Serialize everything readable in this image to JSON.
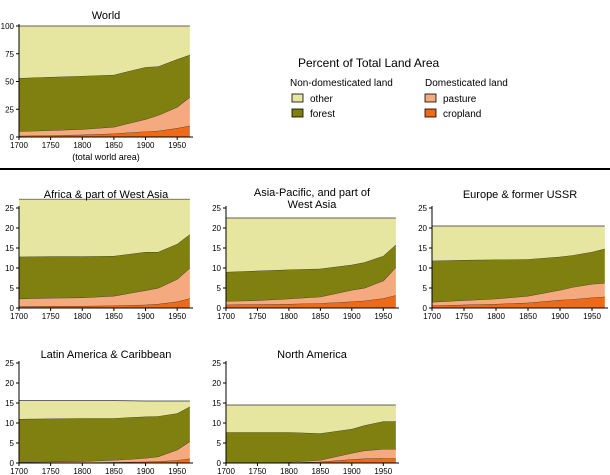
{
  "legend": {
    "title": "Percent of Total Land Area",
    "group_left": "Non-domesticated land",
    "group_right": "Domesticated land",
    "items": [
      {
        "key": "other",
        "label": "other",
        "color": "#e6e6a0"
      },
      {
        "key": "forest",
        "label": "forest",
        "color": "#808010"
      },
      {
        "key": "pasture",
        "label": "pasture",
        "color": "#f5a97f"
      },
      {
        "key": "cropland",
        "label": "cropland",
        "color": "#ee6a16"
      }
    ]
  },
  "chart_data": [
    {
      "type": "area",
      "title": "World",
      "x_note": "(total world area)",
      "x": [
        1700,
        1750,
        1800,
        1850,
        1900,
        1920,
        1950,
        1970
      ],
      "xlim": [
        1700,
        1975
      ],
      "xticks": [
        1700,
        1750,
        1800,
        1850,
        1900,
        1950
      ],
      "ylim": [
        0,
        100
      ],
      "yticks": [
        0,
        25,
        50,
        75,
        100
      ],
      "stacked": true,
      "series": [
        {
          "name": "cropland",
          "values": [
            1,
            1.5,
            2,
            3,
            5,
            5.5,
            8,
            10
          ]
        },
        {
          "name": "pasture",
          "values": [
            4,
            4.5,
            5,
            6,
            11,
            14,
            19,
            26
          ]
        },
        {
          "name": "forest",
          "values": [
            48,
            48,
            48,
            47,
            47,
            44,
            43,
            38
          ]
        },
        {
          "name": "other",
          "values": [
            47,
            46,
            45,
            44,
            37,
            36.5,
            30,
            26
          ]
        }
      ]
    },
    {
      "type": "area",
      "title": "Africa & part of West Asia",
      "x": [
        1700,
        1750,
        1800,
        1850,
        1900,
        1920,
        1950,
        1970
      ],
      "xlim": [
        1700,
        1975
      ],
      "xticks": [
        1700,
        1750,
        1800,
        1850,
        1900,
        1950
      ],
      "ylim": [
        0,
        25
      ],
      "yticks": [
        0,
        5,
        10,
        15,
        20,
        25
      ],
      "stacked": true,
      "series": [
        {
          "name": "cropland",
          "values": [
            0.4,
            0.5,
            0.5,
            0.6,
            0.8,
            1.0,
            1.6,
            2.4
          ]
        },
        {
          "name": "pasture",
          "values": [
            1.9,
            2.0,
            2.1,
            2.4,
            3.6,
            4.0,
            5.6,
            7.6
          ]
        },
        {
          "name": "forest",
          "values": [
            10.5,
            10.4,
            10.3,
            10.0,
            9.6,
            9.0,
            8.8,
            8.4
          ]
        },
        {
          "name": "other",
          "values": [
            14.4,
            14.3,
            14.3,
            14.2,
            13.2,
            13.2,
            11.2,
            8.8
          ]
        }
      ]
    },
    {
      "type": "area",
      "title": "Asia-Pacific, and part of West Asia",
      "x": [
        1700,
        1750,
        1800,
        1850,
        1900,
        1920,
        1950,
        1970
      ],
      "xlim": [
        1700,
        1975
      ],
      "xticks": [
        1700,
        1750,
        1800,
        1850,
        1900,
        1950
      ],
      "ylim": [
        0,
        25
      ],
      "yticks": [
        0,
        5,
        10,
        15,
        20,
        25
      ],
      "stacked": true,
      "series": [
        {
          "name": "cropland",
          "values": [
            0.8,
            0.9,
            1.0,
            1.2,
            1.6,
            1.8,
            2.4,
            3.2
          ]
        },
        {
          "name": "pasture",
          "values": [
            0.9,
            1.0,
            1.3,
            1.6,
            2.9,
            3.2,
            4.4,
            7.0
          ]
        },
        {
          "name": "forest",
          "values": [
            7.3,
            7.4,
            7.3,
            7.0,
            6.3,
            6.4,
            6.2,
            5.6
          ]
        },
        {
          "name": "other",
          "values": [
            13.5,
            13.2,
            12.9,
            12.7,
            11.7,
            11.1,
            9.5,
            6.7
          ]
        }
      ]
    },
    {
      "type": "area",
      "title": "Europe & former USSR",
      "x": [
        1700,
        1750,
        1800,
        1850,
        1900,
        1920,
        1950,
        1970
      ],
      "xlim": [
        1700,
        1975
      ],
      "xticks": [
        1700,
        1750,
        1800,
        1850,
        1900,
        1950
      ],
      "ylim": [
        0,
        25
      ],
      "yticks": [
        0,
        5,
        10,
        15,
        20,
        25
      ],
      "stacked": true,
      "series": [
        {
          "name": "cropland",
          "values": [
            0.6,
            0.8,
            1.0,
            1.3,
            2.0,
            2.2,
            2.6,
            2.8
          ]
        },
        {
          "name": "pasture",
          "values": [
            0.9,
            1.1,
            1.3,
            1.7,
            2.5,
            3.0,
            3.4,
            3.4
          ]
        },
        {
          "name": "forest",
          "values": [
            10.3,
            10.1,
            9.8,
            9.2,
            8.3,
            8.0,
            8.0,
            8.6
          ]
        },
        {
          "name": "other",
          "values": [
            8.7,
            8.5,
            8.4,
            8.3,
            7.7,
            7.3,
            6.5,
            5.7
          ]
        }
      ]
    },
    {
      "type": "area",
      "title": "Latin America & Caribbean",
      "x": [
        1700,
        1750,
        1800,
        1850,
        1900,
        1920,
        1950,
        1970
      ],
      "xlim": [
        1700,
        1975
      ],
      "xticks": [
        1700,
        1750,
        1800,
        1850,
        1900,
        1950
      ],
      "ylim": [
        0,
        25
      ],
      "yticks": [
        0,
        5,
        10,
        15,
        20,
        25
      ],
      "stacked": true,
      "series": [
        {
          "name": "cropland",
          "values": [
            0.1,
            0.1,
            0.1,
            0.2,
            0.3,
            0.4,
            0.7,
            1.1
          ]
        },
        {
          "name": "pasture",
          "values": [
            0.1,
            0.2,
            0.3,
            0.5,
            0.9,
            1.2,
            2.6,
            4.3
          ]
        },
        {
          "name": "forest",
          "values": [
            10.8,
            10.8,
            10.8,
            10.5,
            10.4,
            10.1,
            9.1,
            8.7
          ]
        },
        {
          "name": "other",
          "values": [
            4.6,
            4.5,
            4.4,
            4.4,
            3.9,
            3.8,
            3.1,
            1.4
          ]
        }
      ]
    },
    {
      "type": "area",
      "title": "North America",
      "x": [
        1700,
        1750,
        1800,
        1850,
        1900,
        1920,
        1950,
        1970
      ],
      "xlim": [
        1700,
        1975
      ],
      "xticks": [
        1700,
        1750,
        1800,
        1850,
        1900,
        1950
      ],
      "ylim": [
        0,
        25
      ],
      "yticks": [
        0,
        5,
        10,
        15,
        20,
        25
      ],
      "stacked": true,
      "series": [
        {
          "name": "cropland",
          "values": [
            0.0,
            0.0,
            0.1,
            0.3,
            0.9,
            1.1,
            1.2,
            1.2
          ]
        },
        {
          "name": "pasture",
          "values": [
            0.0,
            0.0,
            0.1,
            0.4,
            1.6,
            2.0,
            2.3,
            2.3
          ]
        },
        {
          "name": "forest",
          "values": [
            7.7,
            7.7,
            7.5,
            6.7,
            6.0,
            6.3,
            6.9,
            6.9
          ]
        },
        {
          "name": "other",
          "values": [
            6.8,
            6.8,
            6.8,
            7.1,
            6.0,
            5.1,
            4.1,
            4.1
          ]
        }
      ]
    }
  ]
}
